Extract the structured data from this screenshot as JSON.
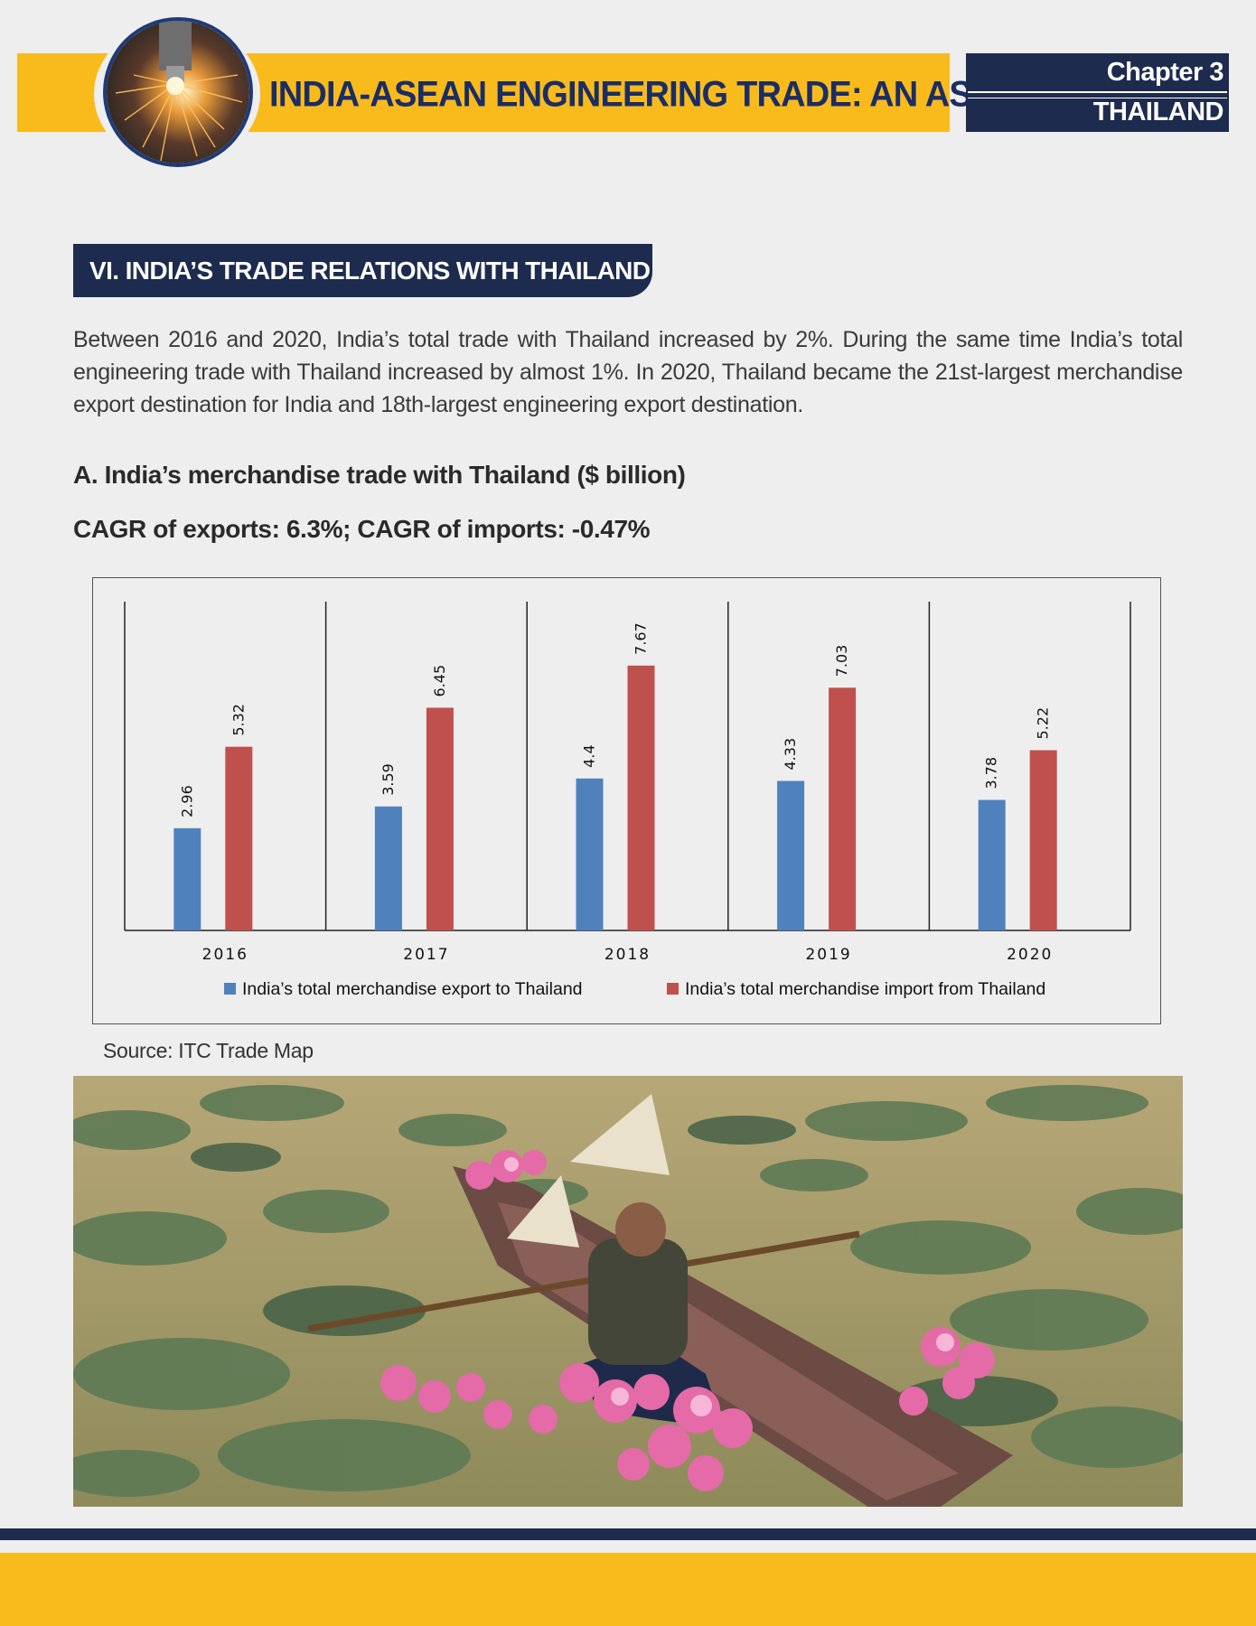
{
  "header": {
    "title": "INDIA-ASEAN ENGINEERING TRADE: AN ASSESSMENT",
    "chapter": "Chapter 3",
    "country": "THAILAND"
  },
  "section": {
    "heading": "VI. INDIA’S TRADE RELATIONS WITH THAILAND",
    "intro": "Between 2016 and 2020, India’s total trade with Thailand increased by 2%. During the same time India’s total engineering trade with Thailand increased by almost 1%. In 2020, Thailand became the 21st-largest merchandise export destination for India and 18th-largest engineering export destination."
  },
  "chart_data": {
    "type": "bar",
    "title": "A.  India’s merchandise trade with Thailand ($ billion)",
    "subtitle": "CAGR of exports: 6.3%; CAGR of imports: -0.47%",
    "categories": [
      "2016",
      "2017",
      "2018",
      "2019",
      "2020"
    ],
    "series": [
      {
        "name": "India’s total merchandise export to Thailand",
        "values": [
          2.96,
          3.59,
          4.4,
          4.33,
          3.78
        ],
        "labels": [
          "2.96",
          "3.59",
          "4.4",
          "4.33",
          "3.78"
        ],
        "color": "#4f81bd"
      },
      {
        "name": "India’s total merchandise import from Thailand",
        "values": [
          5.32,
          6.45,
          7.67,
          7.03,
          5.22
        ],
        "labels": [
          "5.32",
          "6.45",
          "7.67",
          "7.03",
          "5.22"
        ],
        "color": "#c0504d"
      }
    ],
    "ylim": [
      0,
      9
    ],
    "grid": false,
    "legend": "bottom",
    "source": "Source: ITC Trade Map"
  }
}
